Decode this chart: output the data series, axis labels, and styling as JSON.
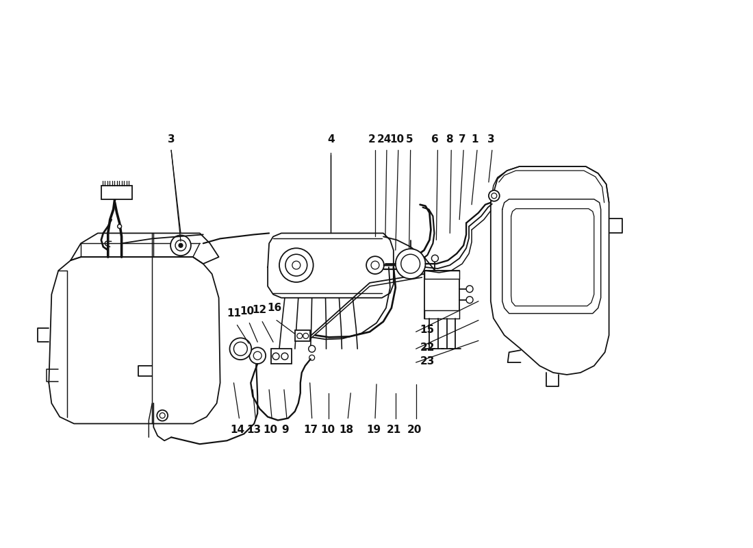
{
  "bg_color": "#ffffff",
  "line_color": "#111111",
  "lw": 1.3,
  "figsize": [
    11.0,
    8.0
  ],
  "dpi": 100
}
